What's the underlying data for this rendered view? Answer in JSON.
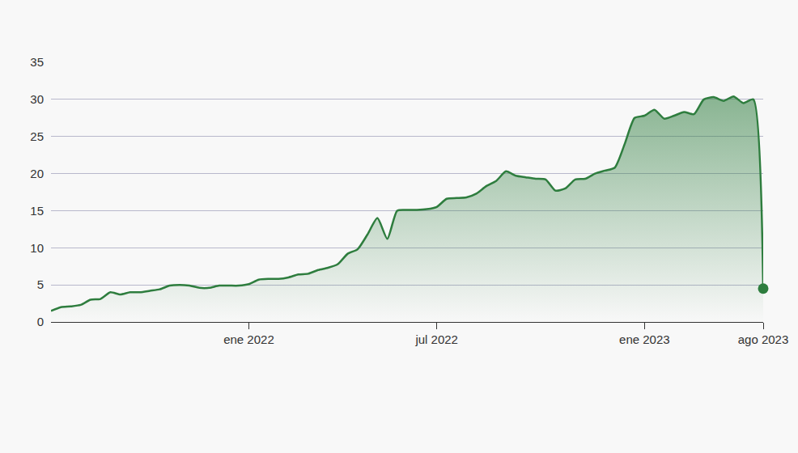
{
  "chart_data": {
    "type": "area",
    "categories": [
      null,
      null,
      null,
      null,
      null,
      null,
      null,
      null,
      null,
      null,
      null,
      null,
      null,
      null,
      null,
      null,
      null,
      null,
      null,
      null,
      "ene 2022",
      null,
      null,
      null,
      null,
      null,
      null,
      null,
      null,
      null,
      null,
      null,
      null,
      null,
      null,
      null,
      null,
      null,
      null,
      "jul 2022",
      null,
      null,
      null,
      null,
      null,
      null,
      null,
      null,
      null,
      null,
      null,
      null,
      null,
      null,
      null,
      null,
      null,
      null,
      null,
      null,
      "ene 2023",
      null,
      null,
      null,
      null,
      null,
      null,
      null,
      null,
      null,
      null,
      null,
      "ago 2023"
    ],
    "values": [
      1.5,
      2.0,
      2.1,
      2.3,
      3.0,
      3.1,
      4.0,
      3.7,
      4.0,
      4.0,
      4.2,
      4.4,
      4.9,
      5.0,
      4.9,
      4.6,
      4.6,
      4.9,
      4.9,
      4.9,
      5.1,
      5.7,
      5.8,
      5.8,
      6.0,
      6.4,
      6.5,
      7.0,
      7.3,
      7.8,
      9.2,
      9.8,
      11.8,
      14.0,
      11.2,
      15.0,
      15.1,
      15.1,
      15.2,
      15.5,
      16.6,
      16.7,
      16.8,
      17.3,
      18.3,
      19.0,
      20.3,
      19.7,
      19.5,
      19.3,
      19.2,
      17.7,
      18.0,
      19.2,
      19.3,
      20.0,
      20.4,
      20.8,
      24.0,
      27.5,
      27.8,
      28.6,
      27.4,
      27.8,
      28.3,
      28.0,
      30.0,
      30.3,
      29.8,
      30.4,
      29.5,
      30.0,
      4.5
    ],
    "color": "#2e7d3e",
    "marker": "circle",
    "ylim": [
      0,
      35
    ],
    "yticks": [
      0,
      5,
      10,
      15,
      20,
      25,
      30,
      35
    ],
    "grid": true
  }
}
